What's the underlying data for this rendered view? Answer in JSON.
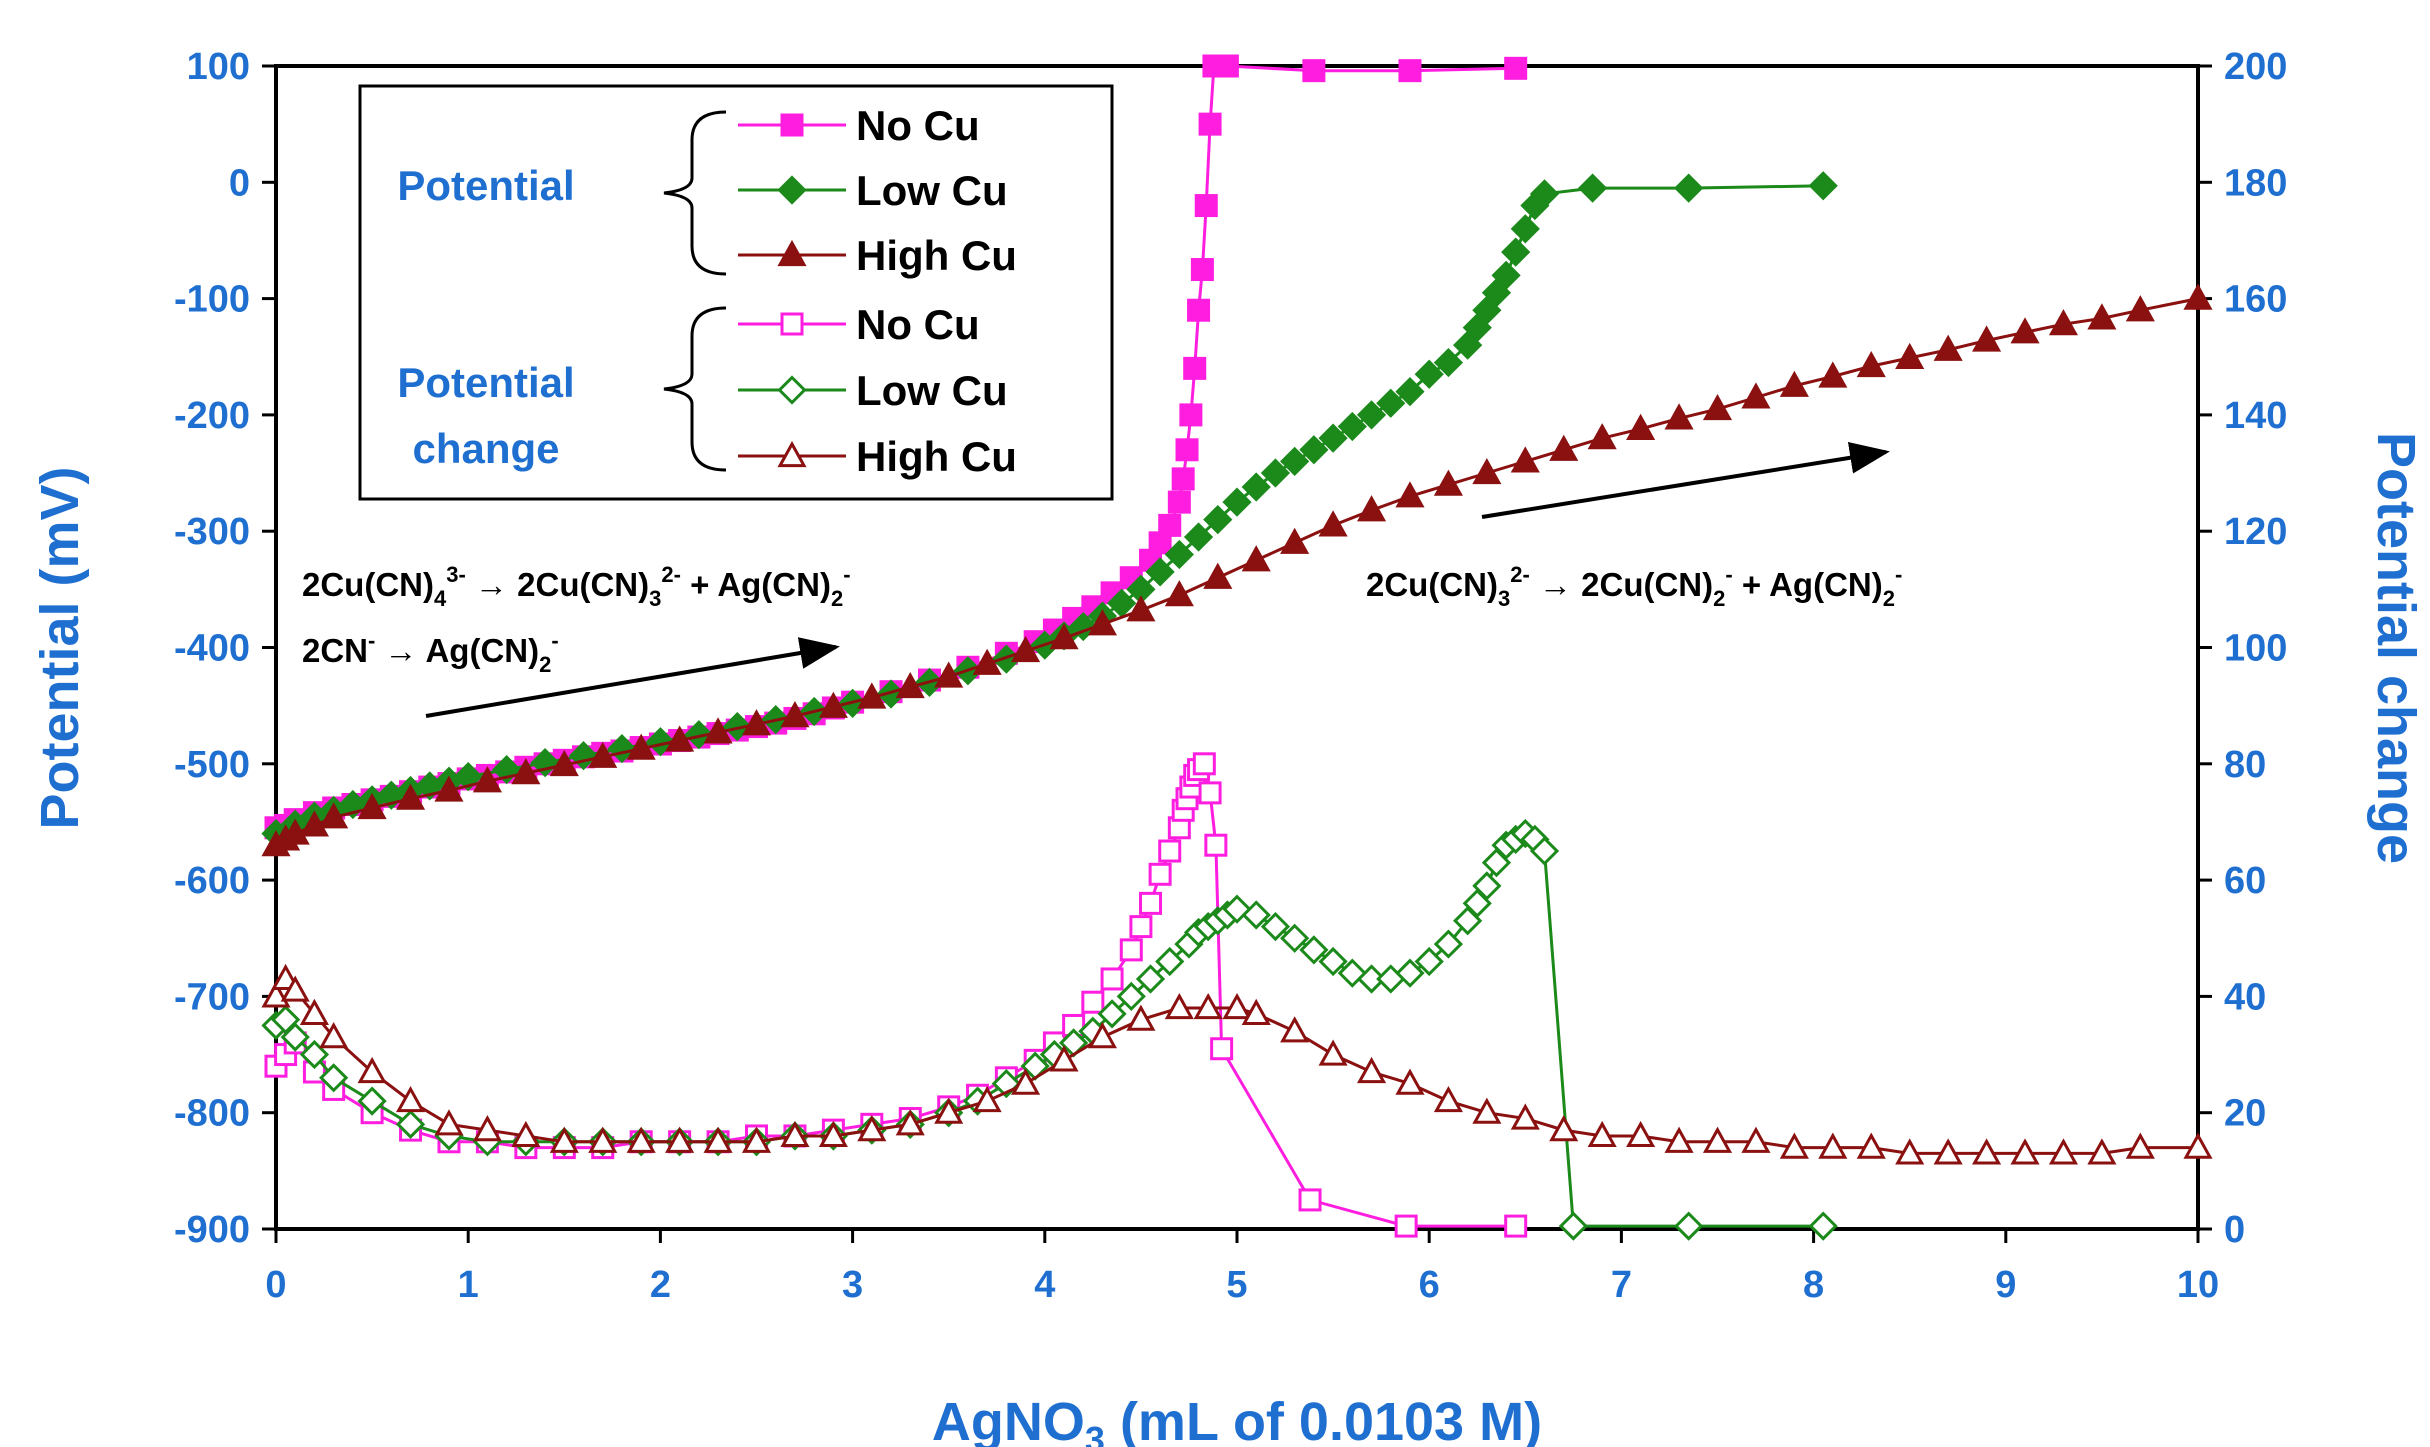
{
  "colors": {
    "no_cu": "#ff1ee0",
    "low_cu": "#1b8a1b",
    "high_cu": "#8b1010",
    "axis_blue": "#1f6fd0"
  },
  "chart_data": {
    "type": "line",
    "xlabel": "AgNO",
    "xlabel_sub": "3",
    "xlabel_rest": " (mL of 0.0103 M)",
    "ylabel_left": "Potential (mV)",
    "ylabel_right": "Potential change",
    "xlim": [
      0,
      10
    ],
    "ylim_left": [
      -900,
      100
    ],
    "ylim_right": [
      0,
      200
    ],
    "x_ticks": [
      "0",
      "1",
      "2",
      "3",
      "4",
      "5",
      "6",
      "7",
      "8",
      "9",
      "10"
    ],
    "y_ticks_left": [
      "100",
      "0",
      "-100",
      "-200",
      "-300",
      "-400",
      "-500",
      "-600",
      "-700",
      "-800",
      "-900"
    ],
    "y_ticks_right": [
      "200",
      "180",
      "160",
      "140",
      "120",
      "100",
      "80",
      "60",
      "40",
      "20",
      "0"
    ],
    "legend": {
      "placement": "top-left",
      "group_potential": "Potential",
      "group_change_1": "Potential",
      "group_change_2": "change",
      "entries": [
        "No Cu",
        "Low Cu",
        "High Cu",
        "No Cu",
        "Low Cu",
        "High Cu"
      ]
    },
    "annotations": {
      "eq1_parts": [
        "2Cu(CN)",
        "4",
        "3-",
        " → 2Cu(CN)",
        "3",
        "2-",
        " + Ag(CN)",
        "2",
        "-"
      ],
      "eq2_parts": [
        "2CN",
        "-",
        " → Ag(CN)",
        "2",
        "-"
      ],
      "eq3_parts": [
        "2Cu(CN)",
        "3",
        "2-",
        " → 2Cu(CN)",
        "2",
        "-",
        " + Ag(CN)",
        "2",
        "-"
      ]
    },
    "series": [
      {
        "name": "No Cu",
        "axis": "left",
        "marker": "square",
        "filled": true,
        "color_key": "no_cu",
        "x": [
          0,
          0.05,
          0.1,
          0.2,
          0.3,
          0.4,
          0.5,
          0.6,
          0.7,
          0.8,
          0.9,
          1.0,
          1.1,
          1.2,
          1.3,
          1.4,
          1.5,
          1.6,
          1.7,
          1.8,
          1.9,
          2.0,
          2.1,
          2.2,
          2.3,
          2.4,
          2.5,
          2.6,
          2.7,
          2.8,
          2.9,
          3.0,
          3.2,
          3.4,
          3.6,
          3.8,
          3.95,
          4.05,
          4.15,
          4.25,
          4.35,
          4.45,
          4.55,
          4.6,
          4.65,
          4.7,
          4.72,
          4.74,
          4.76,
          4.78,
          4.8,
          4.82,
          4.84,
          4.86,
          4.88,
          4.9,
          4.95,
          5.4,
          5.9,
          6.45
        ],
        "y": [
          -555,
          -553,
          -548,
          -542,
          -538,
          -535,
          -531,
          -528,
          -524,
          -520,
          -517,
          -513,
          -510,
          -507,
          -503,
          -500,
          -497,
          -494,
          -491,
          -489,
          -486,
          -483,
          -480,
          -477,
          -474,
          -471,
          -468,
          -465,
          -461,
          -457,
          -452,
          -447,
          -438,
          -428,
          -417,
          -405,
          -395,
          -385,
          -375,
          -365,
          -353,
          -340,
          -325,
          -310,
          -295,
          -275,
          -255,
          -230,
          -200,
          -160,
          -110,
          -75,
          -20,
          50,
          100,
          100,
          100,
          96,
          96,
          98
        ]
      },
      {
        "name": "Low Cu",
        "axis": "left",
        "marker": "diamond",
        "filled": true,
        "color_key": "low_cu",
        "x": [
          0,
          0.1,
          0.2,
          0.3,
          0.4,
          0.5,
          0.6,
          0.7,
          0.8,
          0.9,
          1.0,
          1.2,
          1.4,
          1.6,
          1.8,
          2.0,
          2.2,
          2.4,
          2.6,
          2.8,
          3.0,
          3.2,
          3.4,
          3.6,
          3.8,
          4.0,
          4.1,
          4.2,
          4.3,
          4.4,
          4.5,
          4.6,
          4.7,
          4.8,
          4.9,
          5.0,
          5.1,
          5.2,
          5.3,
          5.4,
          5.5,
          5.6,
          5.7,
          5.8,
          5.9,
          6.0,
          6.1,
          6.2,
          6.25,
          6.3,
          6.35,
          6.4,
          6.45,
          6.5,
          6.55,
          6.6,
          6.85,
          7.35,
          8.05
        ],
        "y": [
          -560,
          -552,
          -545,
          -540,
          -535,
          -531,
          -527,
          -523,
          -519,
          -515,
          -511,
          -505,
          -499,
          -493,
          -487,
          -481,
          -475,
          -468,
          -462,
          -455,
          -448,
          -440,
          -430,
          -420,
          -410,
          -398,
          -390,
          -382,
          -373,
          -362,
          -350,
          -335,
          -320,
          -305,
          -290,
          -275,
          -262,
          -250,
          -240,
          -230,
          -220,
          -210,
          -200,
          -190,
          -180,
          -165,
          -155,
          -140,
          -125,
          -110,
          -95,
          -80,
          -60,
          -40,
          -20,
          -10,
          -5,
          -5,
          -3
        ]
      },
      {
        "name": "High Cu",
        "axis": "left",
        "marker": "triangle",
        "filled": true,
        "color_key": "high_cu",
        "x": [
          0,
          0.05,
          0.1,
          0.2,
          0.3,
          0.5,
          0.7,
          0.9,
          1.1,
          1.3,
          1.5,
          1.7,
          1.9,
          2.1,
          2.3,
          2.5,
          2.7,
          2.9,
          3.1,
          3.3,
          3.5,
          3.7,
          3.9,
          4.1,
          4.3,
          4.5,
          4.7,
          4.9,
          5.1,
          5.3,
          5.5,
          5.7,
          5.9,
          6.1,
          6.3,
          6.5,
          6.7,
          6.9,
          7.1,
          7.3,
          7.5,
          7.7,
          7.9,
          8.1,
          8.3,
          8.5,
          8.7,
          8.9,
          9.1,
          9.3,
          9.5,
          9.7,
          10.0
        ],
        "y": [
          -570,
          -565,
          -560,
          -553,
          -546,
          -538,
          -530,
          -523,
          -515,
          -508,
          -501,
          -494,
          -487,
          -480,
          -473,
          -466,
          -459,
          -451,
          -443,
          -434,
          -425,
          -414,
          -403,
          -392,
          -380,
          -368,
          -355,
          -340,
          -325,
          -310,
          -295,
          -282,
          -270,
          -260,
          -250,
          -240,
          -230,
          -220,
          -212,
          -203,
          -195,
          -185,
          -175,
          -167,
          -158,
          -151,
          -144,
          -136,
          -129,
          -122,
          -117,
          -110,
          -100
        ]
      },
      {
        "name": "No Cu",
        "axis": "right",
        "marker": "square",
        "filled": false,
        "color_key": "no_cu",
        "x": [
          0,
          0.05,
          0.1,
          0.2,
          0.3,
          0.5,
          0.7,
          0.9,
          1.1,
          1.3,
          1.5,
          1.7,
          1.9,
          2.1,
          2.3,
          2.5,
          2.7,
          2.9,
          3.1,
          3.3,
          3.5,
          3.65,
          3.8,
          3.95,
          4.05,
          4.15,
          4.25,
          4.35,
          4.45,
          4.5,
          4.55,
          4.6,
          4.65,
          4.7,
          4.72,
          4.74,
          4.76,
          4.78,
          4.8,
          4.83,
          4.86,
          4.89,
          4.92,
          5.38,
          5.88,
          6.45
        ],
        "y": [
          28,
          30,
          32,
          27,
          24,
          20,
          17,
          15,
          15,
          14,
          14,
          14,
          15,
          15,
          15,
          16,
          16,
          17,
          18,
          19,
          21,
          23,
          26,
          29,
          32,
          35,
          39,
          43,
          48,
          52,
          56,
          61,
          65,
          69,
          72,
          74,
          76,
          78,
          79,
          80,
          75,
          66,
          31,
          5,
          0.5,
          0.5
        ]
      },
      {
        "name": "Low Cu",
        "axis": "right",
        "marker": "diamond",
        "filled": false,
        "color_key": "low_cu",
        "x": [
          0,
          0.05,
          0.1,
          0.2,
          0.3,
          0.5,
          0.7,
          0.9,
          1.1,
          1.3,
          1.5,
          1.7,
          1.9,
          2.1,
          2.3,
          2.5,
          2.7,
          2.9,
          3.1,
          3.3,
          3.5,
          3.65,
          3.8,
          3.95,
          4.05,
          4.15,
          4.25,
          4.35,
          4.45,
          4.55,
          4.65,
          4.75,
          4.8,
          4.85,
          4.9,
          4.95,
          5.0,
          5.1,
          5.2,
          5.3,
          5.4,
          5.5,
          5.6,
          5.7,
          5.8,
          5.9,
          6.0,
          6.1,
          6.2,
          6.25,
          6.3,
          6.35,
          6.4,
          6.45,
          6.5,
          6.55,
          6.6,
          6.75,
          7.35,
          8.05
        ],
        "y": [
          35,
          36,
          33,
          30,
          26,
          22,
          18,
          16,
          15,
          15,
          15,
          15,
          15,
          15,
          15,
          15,
          16,
          16,
          17,
          18,
          20,
          22,
          25,
          28,
          30,
          32,
          34,
          37,
          40,
          43,
          46,
          49,
          51,
          52,
          53,
          54,
          55,
          54,
          52,
          50,
          48,
          46,
          44,
          43,
          43,
          44,
          46,
          49,
          53,
          56,
          59,
          63,
          66,
          67,
          68,
          67,
          65,
          0.5,
          0.5,
          0.5
        ]
      },
      {
        "name": "High Cu",
        "axis": "right",
        "marker": "triangle",
        "filled": false,
        "color_key": "high_cu",
        "x": [
          0,
          0.05,
          0.1,
          0.2,
          0.3,
          0.5,
          0.7,
          0.9,
          1.1,
          1.3,
          1.5,
          1.7,
          1.9,
          2.1,
          2.3,
          2.5,
          2.7,
          2.9,
          3.1,
          3.3,
          3.5,
          3.7,
          3.9,
          4.1,
          4.3,
          4.5,
          4.7,
          4.85,
          5.0,
          5.1,
          5.3,
          5.5,
          5.7,
          5.9,
          6.1,
          6.3,
          6.5,
          6.7,
          6.9,
          7.1,
          7.3,
          7.5,
          7.7,
          7.9,
          8.1,
          8.3,
          8.5,
          8.7,
          8.9,
          9.1,
          9.3,
          9.5,
          9.7,
          10.0
        ],
        "y": [
          40,
          43,
          41,
          37,
          33,
          27,
          22,
          18,
          17,
          16,
          15,
          15,
          15,
          15,
          15,
          15,
          16,
          16,
          17,
          18,
          20,
          22,
          25,
          29,
          33,
          36,
          38,
          38,
          38,
          37,
          34,
          30,
          27,
          25,
          22,
          20,
          19,
          17,
          16,
          16,
          15,
          15,
          15,
          14,
          14,
          14,
          13,
          13,
          13,
          13,
          13,
          13,
          14,
          14
        ]
      }
    ]
  }
}
